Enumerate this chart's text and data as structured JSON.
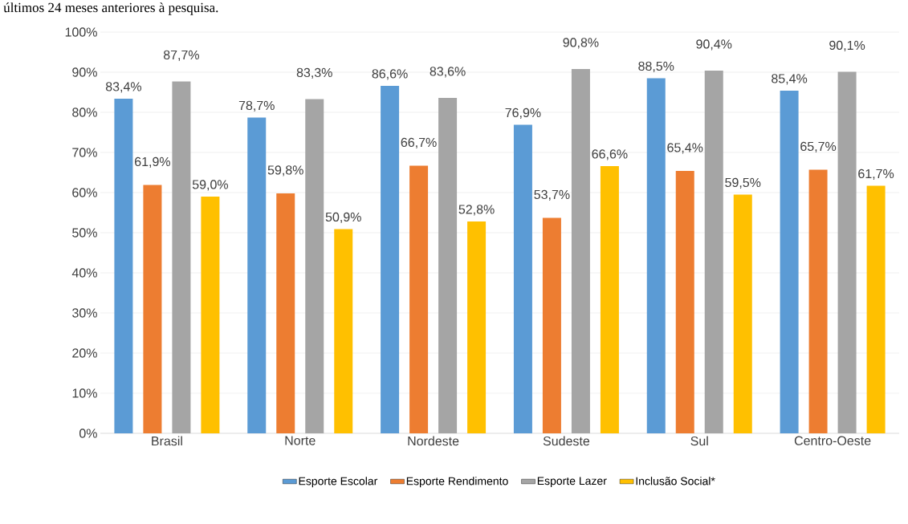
{
  "chart_data": {
    "type": "bar",
    "title": "últimos 24 meses anteriores à pesquisa.",
    "categories": [
      "Brasil",
      "Norte",
      "Nordeste",
      "Sudeste",
      "Sul",
      "Centro-Oeste"
    ],
    "series": [
      {
        "name": "Esporte Escolar",
        "color": "#5b9bd5",
        "values": [
          83.4,
          78.7,
          86.6,
          76.9,
          88.5,
          85.4
        ],
        "value_labels": [
          "83,4%",
          "78,7%",
          "86,6%",
          "76,9%",
          "88,5%",
          "85,4%"
        ]
      },
      {
        "name": "Esporte Rendimento",
        "color": "#ed7d31",
        "values": [
          61.9,
          59.8,
          66.7,
          53.7,
          65.4,
          65.7
        ],
        "value_labels": [
          "61,9%",
          "59,8%",
          "66,7%",
          "53,7%",
          "65,4%",
          "65,7%"
        ]
      },
      {
        "name": "Esporte Lazer",
        "color": "#a5a5a5",
        "values": [
          87.7,
          83.3,
          83.6,
          90.8,
          90.4,
          90.1
        ],
        "value_labels": [
          "87,7%",
          "83,3%",
          "83,6%",
          "90,8%",
          "90,4%",
          "90,1%"
        ]
      },
      {
        "name": "Inclusão Social*",
        "color": "#ffc000",
        "values": [
          59.0,
          50.9,
          52.8,
          66.6,
          59.5,
          61.7
        ],
        "value_labels": [
          "59,0%",
          "50,9%",
          "52,8%",
          "66,6%",
          "59,5%",
          "61,7%"
        ]
      }
    ],
    "ylim": [
      0,
      100
    ],
    "yticks": [
      {
        "value": 0,
        "label": "0%"
      },
      {
        "value": 10,
        "label": "10%"
      },
      {
        "value": 20,
        "label": "20%"
      },
      {
        "value": 30,
        "label": "30%"
      },
      {
        "value": 40,
        "label": "40%"
      },
      {
        "value": 50,
        "label": "50%"
      },
      {
        "value": 60,
        "label": "60%"
      },
      {
        "value": 70,
        "label": "70%"
      },
      {
        "value": 80,
        "label": "80%"
      },
      {
        "value": 90,
        "label": "90%"
      },
      {
        "value": 100,
        "label": "100%"
      }
    ],
    "grid": "y",
    "legend": "bottom"
  }
}
